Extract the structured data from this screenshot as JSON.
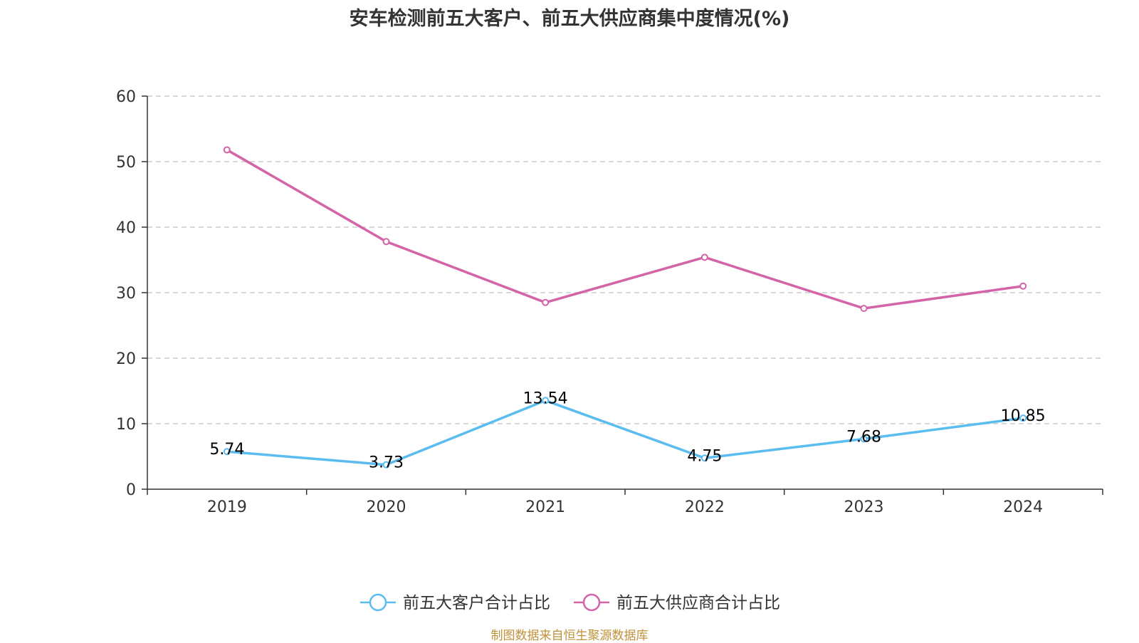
{
  "colors": {
    "customers": "#5bbcef",
    "suppliers": "#d464a8",
    "axis": "#333333",
    "grid": "#cccccc",
    "source": "#c0913a"
  },
  "source_text": "制图数据来自恒生聚源数据库",
  "chart_data": {
    "type": "line",
    "title": "安车检测前五大客户、前五大供应商集中度情况(%)",
    "xlabel": "",
    "ylabel": "",
    "categories": [
      "2019",
      "2020",
      "2021",
      "2022",
      "2023",
      "2024"
    ],
    "ylim": [
      0,
      60
    ],
    "yticks": [
      "0",
      "10",
      "20",
      "30",
      "40",
      "50",
      "60"
    ],
    "grid": true,
    "legend_position": "bottom",
    "series": [
      {
        "name": "前五大客户合计占比",
        "values": [
          5.74,
          3.73,
          13.54,
          4.75,
          7.68,
          10.85
        ],
        "labels": [
          "5.74",
          "3.73",
          "13.54",
          "4.75",
          "7.68",
          "10.85"
        ],
        "color": "#5bbcef"
      },
      {
        "name": "前五大供应商合计占比",
        "values": [
          51.8,
          37.8,
          28.5,
          35.4,
          27.6,
          31.0
        ],
        "labels": [],
        "color": "#d464a8"
      }
    ]
  }
}
